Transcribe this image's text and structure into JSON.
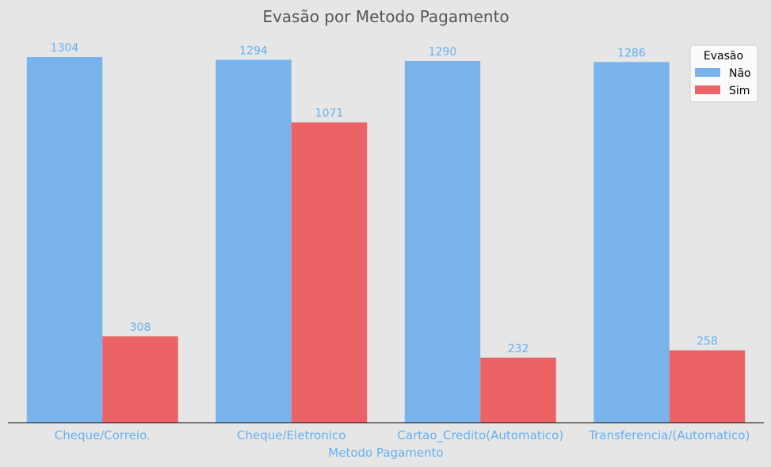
{
  "chart_data": {
    "type": "bar",
    "title": "Evasão por Metodo Pagamento",
    "xlabel": "Metodo Pagamento",
    "ylabel": "",
    "categories": [
      "Cheque/Correio.",
      "Cheque/Eletronico",
      "Cartao_Credito(Automatico)",
      "Transferencia/(Automatico)"
    ],
    "series": [
      {
        "name": "Não",
        "values": [
          1304,
          1294,
          1290,
          1286
        ],
        "color": "#78b3ec"
      },
      {
        "name": "Sim",
        "values": [
          308,
          1071,
          232,
          258
        ],
        "color": "#eb6364"
      }
    ],
    "ylim": [
      0,
      1370
    ],
    "legend": {
      "title": "Evasão",
      "placement": "top-right"
    },
    "grid": false,
    "colors": {
      "background": "#e6e6e6",
      "title": "#555555",
      "label": "#64b0f4",
      "axis": "#000000"
    }
  }
}
